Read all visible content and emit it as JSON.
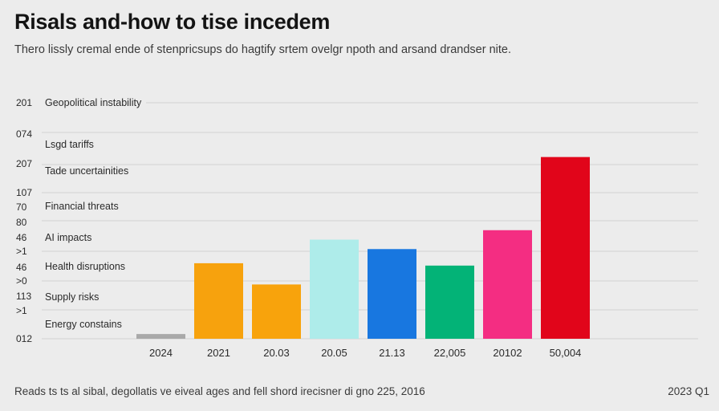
{
  "header": {
    "title": "Risals and-how to tise incedem",
    "subtitle": "Thero lissly cremal ende of stenpricsups do hagtify srtem ovelgr npoth and arsand drandser nite."
  },
  "footer": {
    "note": "Reads ts ts al sibal, degollatis ve eiveal ages and fell shord irecisner di gno 225, 2016",
    "date": "2023 Q1"
  },
  "chart_data": {
    "type": "bar",
    "title": "Risals and-how to tise incedem",
    "xlabel": "",
    "ylabel": "",
    "grid": true,
    "ylim": [
      0,
      100
    ],
    "y_tick_labels": [
      "201",
      "074",
      "207",
      "107",
      "70",
      "80",
      "46",
      ">1",
      "46",
      ">0",
      "113",
      ">1",
      "012"
    ],
    "row_labels": [
      "Geopolitical instability",
      "Lsgd tariffs",
      "Tade uncertainities",
      "Financial threats",
      "AI impacts",
      "Health disruptions",
      "Supply risks",
      "Energy constains"
    ],
    "categories": [
      "2024",
      "2021",
      "20.03",
      "20.05",
      "21.13",
      "22,005",
      "20102",
      "50,004"
    ],
    "values": [
      2,
      32,
      23,
      42,
      38,
      31,
      46,
      77
    ],
    "colors": [
      "#a9a9a9",
      "#f7a20d",
      "#f8a30c",
      "#aeecea",
      "#1877e0",
      "#03b377",
      "#f42d82",
      "#e1051a"
    ]
  }
}
